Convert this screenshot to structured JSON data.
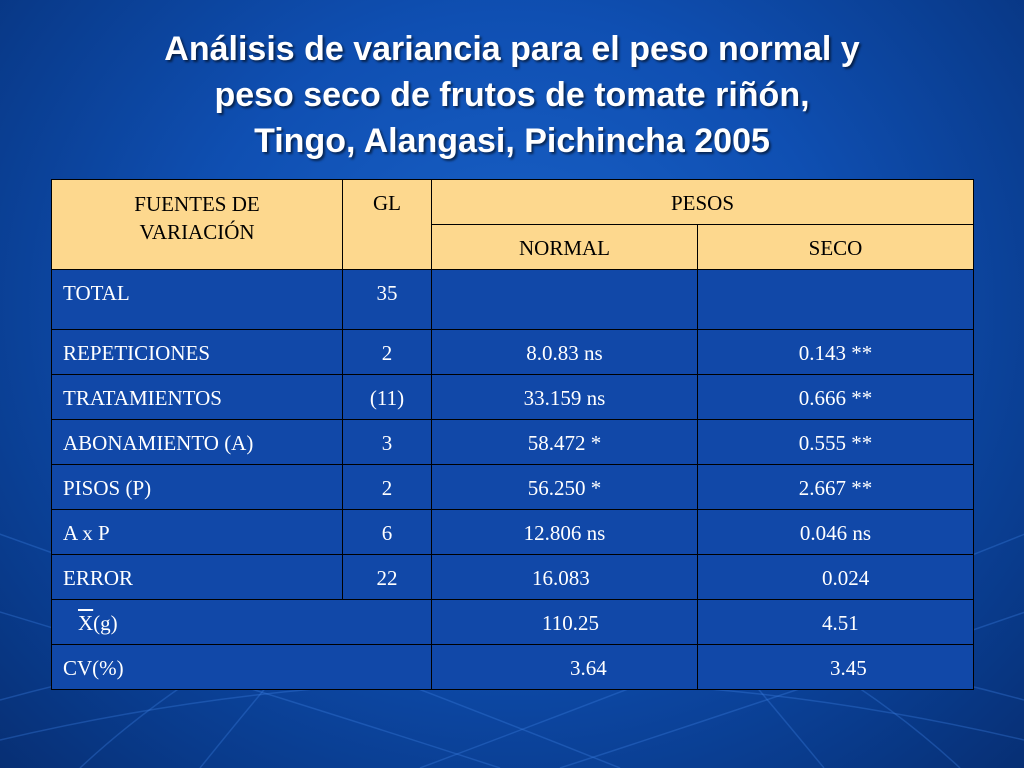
{
  "title": {
    "line1": "Análisis de variancia para el peso normal y",
    "line2": "peso seco de  frutos de tomate riñón,",
    "line3": "Tingo, Alangasi, Pichincha 2005"
  },
  "table": {
    "headers": {
      "source": "FUENTES DE VARIACIÓN",
      "source_l1": "FUENTES DE",
      "source_l2": "VARIACIÓN",
      "gl": "GL",
      "pesos": "PESOS",
      "normal": "NORMAL",
      "seco": "SECO"
    },
    "rows": [
      {
        "fuente": "TOTAL",
        "gl": "35",
        "normal": "",
        "seco": ""
      },
      {
        "fuente": "REPETICIONES",
        "gl": "2",
        "normal": "8.0.83 ns",
        "seco": "0.143 **"
      },
      {
        "fuente": "TRATAMIENTOS",
        "gl": "(11)",
        "normal": "33.159 ns",
        "seco": "0.666 **"
      },
      {
        "fuente": "ABONAMIENTO (A)",
        "gl": "3",
        "normal": "58.472 *",
        "seco": "0.555 **"
      },
      {
        "fuente": "PISOS (P)",
        "gl": "2",
        "normal": "56.250 *",
        "seco": "2.667 **"
      },
      {
        "fuente": "A x P",
        "gl": "6",
        "normal": "12.806 ns",
        "seco": "0.046 ns"
      },
      {
        "fuente": "ERROR",
        "gl": "22",
        "normal": "16.083",
        "seco": "0.024"
      }
    ],
    "summary": [
      {
        "x_symbol": "X",
        "x_unit": "(g)",
        "normal": "110.25",
        "seco": "4.51"
      },
      {
        "label": "CV(%)",
        "normal": "3.64",
        "seco": "3.45"
      }
    ]
  },
  "colors": {
    "header_fill": "#fdd88e",
    "body_fill": "#1148a8",
    "background": "#0f4fb2",
    "text": "#ffffff"
  }
}
